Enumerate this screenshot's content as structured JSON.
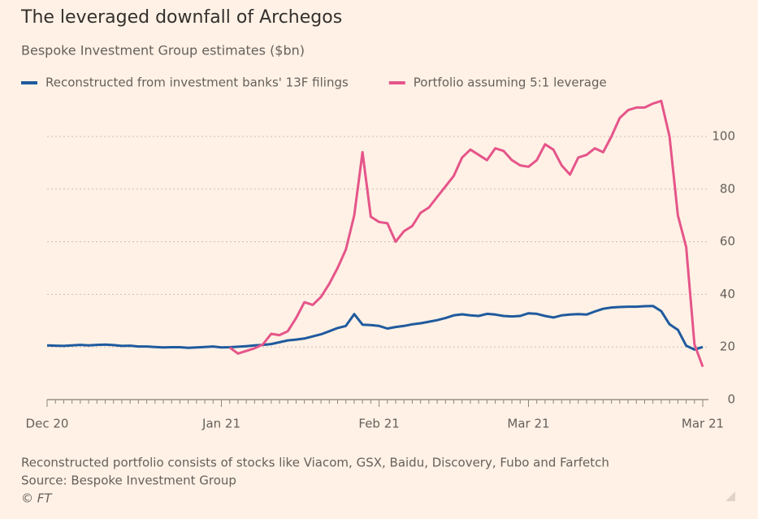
{
  "chart_data": {
    "type": "line",
    "title": "The leveraged downfall of Archegos",
    "subtitle": "Bespoke Investment Group estimates ($bn)",
    "note": "Reconstructed portfolio consists of stocks like Viacom, GSX, Baidu, Discovery, Fubo and Farfetch",
    "source": "Source: Bespoke Investment Group",
    "credit": "© FT",
    "categories": [
      "Dec 20",
      null,
      null,
      null,
      null,
      null,
      null,
      null,
      null,
      null,
      null,
      null,
      null,
      null,
      null,
      null,
      null,
      null,
      null,
      null,
      null,
      "Jan 21",
      null,
      null,
      null,
      null,
      null,
      null,
      null,
      null,
      null,
      null,
      null,
      null,
      null,
      null,
      null,
      null,
      null,
      null,
      "Feb 21",
      null,
      null,
      null,
      null,
      null,
      null,
      null,
      null,
      null,
      null,
      null,
      null,
      null,
      null,
      null,
      null,
      null,
      "Mar 21",
      null,
      null,
      null,
      null,
      null,
      null,
      null,
      null,
      null,
      null,
      null,
      null,
      null,
      null,
      null,
      null,
      null,
      null,
      null,
      null,
      "Mar 21"
    ],
    "series": [
      {
        "name": "Reconstructed from investment banks' 13F filings",
        "color": "#1f5a9e",
        "values": [
          20.6,
          20.5,
          20.4,
          20.6,
          20.8,
          20.6,
          20.8,
          20.9,
          20.7,
          20.4,
          20.5,
          20.2,
          20.2,
          20,
          19.8,
          19.9,
          19.9,
          19.7,
          19.8,
          20,
          20.2,
          19.8,
          19.9,
          20.1,
          20.3,
          20.6,
          20.8,
          21.1,
          21.8,
          22.5,
          22.8,
          23.2,
          24,
          24.8,
          26,
          27.2,
          28,
          32.5,
          28.5,
          28.3,
          28,
          27,
          27.6,
          28,
          28.6,
          29,
          29.6,
          30.2,
          31,
          32,
          32.4,
          32,
          31.8,
          32.6,
          32.3,
          31.8,
          31.6,
          31.8,
          32.8,
          32.6,
          31.8,
          31.2,
          32,
          32.3,
          32.5,
          32.3,
          33.5,
          34.5,
          35,
          35.2,
          35.3,
          35.3,
          35.5,
          35.6,
          33.6,
          28.6,
          26.5,
          20.5,
          19,
          20
        ]
      },
      {
        "name": "Portfolio assuming 5:1 leverage",
        "color": "#e5558a",
        "values": [
          null,
          null,
          null,
          null,
          null,
          null,
          null,
          null,
          null,
          null,
          null,
          null,
          null,
          null,
          null,
          null,
          null,
          null,
          null,
          null,
          null,
          null,
          19.8,
          17.5,
          18.5,
          19.5,
          21,
          25,
          24.5,
          26,
          31,
          37,
          36,
          39,
          44,
          50,
          57,
          70,
          94,
          69.5,
          67.5,
          67,
          60,
          64,
          66,
          71,
          73,
          77,
          81,
          85,
          92,
          95,
          93,
          91,
          95.5,
          94.5,
          91,
          89,
          88.5,
          91,
          97,
          95,
          89,
          85.5,
          92,
          93,
          95.5,
          94,
          100,
          107,
          110,
          111,
          111,
          112.5,
          113.5,
          100,
          70,
          58,
          21,
          12.5
        ]
      }
    ],
    "ylim": [
      0,
      115
    ],
    "yticks": [
      0,
      20,
      40,
      60,
      80,
      100
    ],
    "grid": true
  }
}
